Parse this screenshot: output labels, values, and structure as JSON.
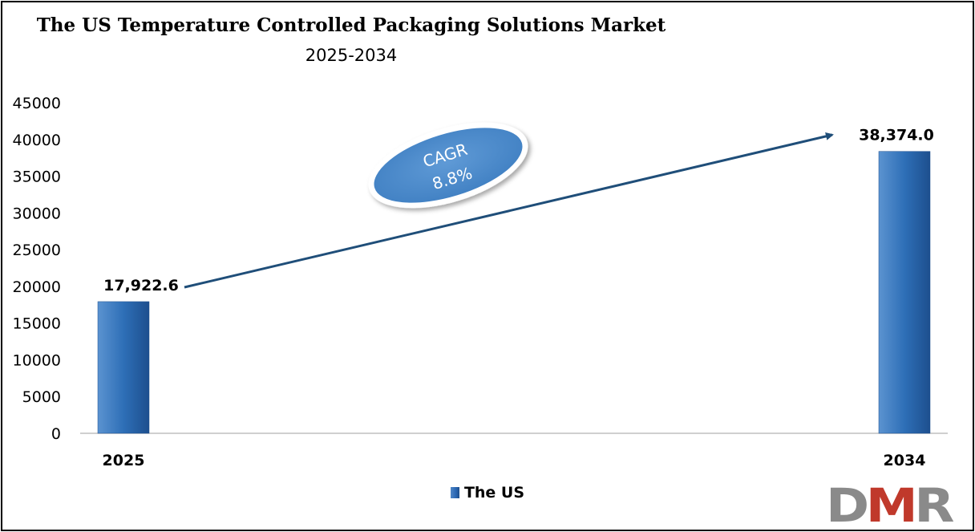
{
  "chart_data": {
    "type": "bar",
    "title": "The US Temperature Controlled Packaging Solutions Market",
    "subtitle": "2025-2034",
    "categories": [
      "2025",
      "2034"
    ],
    "series": [
      {
        "name": "The US",
        "values": [
          17922.6,
          38374.0
        ],
        "labels": [
          "17,922.6",
          "38,374.0"
        ]
      }
    ],
    "ylim": [
      0,
      45000
    ],
    "yticks": [
      "0",
      "5000",
      "10000",
      "15000",
      "20000",
      "25000",
      "30000",
      "35000",
      "40000",
      "45000"
    ],
    "grid": false,
    "legend": "bottom",
    "annotation": {
      "line1": "CAGR",
      "line2": "8.8%"
    },
    "colors": {
      "bar": "#2e6fb7",
      "arrow": "#1f4e79",
      "ellipse": "#4a8acb"
    }
  },
  "logo": {
    "text": "DMR",
    "colors": [
      "#8a8a8a",
      "#c0392b"
    ]
  }
}
